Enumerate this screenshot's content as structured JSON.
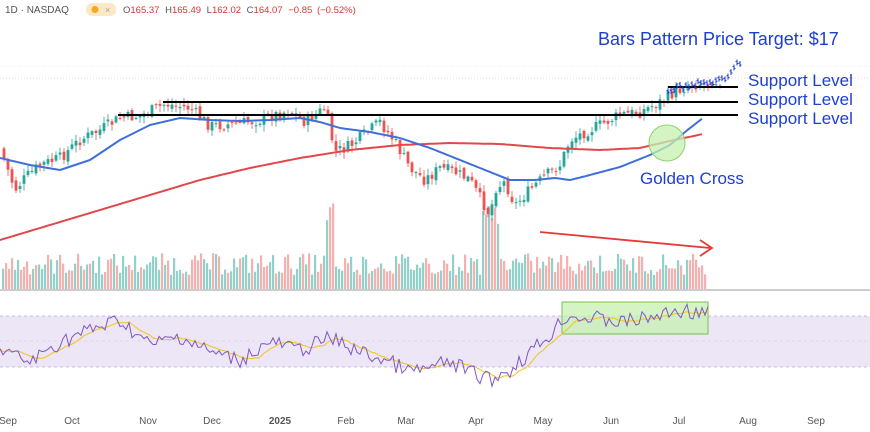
{
  "header": {
    "interval": "1D",
    "separator": "·",
    "exchange": "NASDAQ",
    "ohlc": {
      "o_label": "O",
      "o": "165.37",
      "h_label": "H",
      "h": "165.49",
      "l_label": "L",
      "l": "162.02",
      "c_label": "C",
      "c": "164.07",
      "change": "−0.85",
      "change_pct": "(−0.52%)"
    }
  },
  "colors": {
    "up": "#26a69a",
    "down": "#ef5350",
    "ma_fast": "#3f6fd8",
    "ma_slow": "#e2474b",
    "support": "#000000",
    "annotation_text": "#1b3fd1",
    "golden_cross_fill": "#c6f0b0",
    "rsi_line": "#7e57c2",
    "rsi_ma": "#f0c419",
    "rsi_band": "#ece6f6",
    "rsi_box": "#c6f0b0",
    "arrow": "#e53935",
    "projected_bars": "#1b3fd1"
  },
  "chart_data": {
    "type": "candlestick",
    "x_ticks": [
      "Sep",
      "Oct",
      "Nov",
      "Dec",
      "2025",
      "Feb",
      "Mar",
      "Apr",
      "May",
      "Jun",
      "Jul",
      "Aug",
      "Sep"
    ],
    "annotations": {
      "price_target": "Bars Pattern Price Target: $17",
      "support_1": "Support Level",
      "support_2": "Support Level",
      "support_3": "Support Level",
      "golden_cross": "Golden Cross"
    },
    "moving_averages": [
      "50-day",
      "200-day"
    ],
    "indicator": "RSI",
    "grid": false
  }
}
